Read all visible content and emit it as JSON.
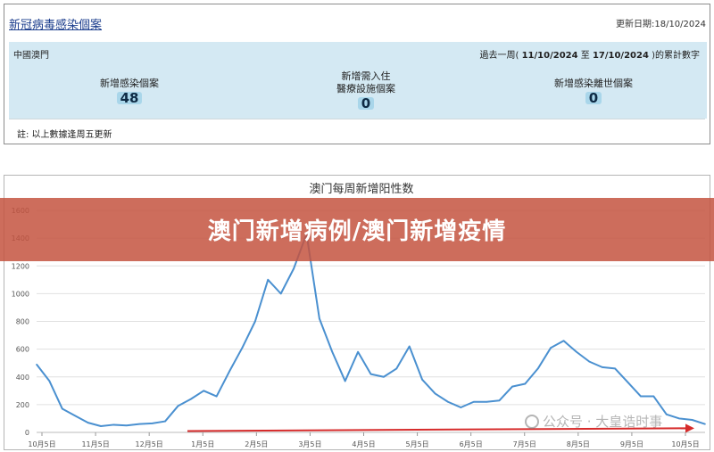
{
  "panel": {
    "title": "新冠病毒感染個案",
    "updated": "更新日期:18/10/2024",
    "region": "中國澳門",
    "period_prefix": "過去一周(",
    "period_dates": "11/10/2024",
    "period_mid": "至",
    "period_dates_end": "17/10/2024",
    "period_suffix": ")的累計數字",
    "stats": [
      {
        "label": "新增感染個案",
        "label2": "",
        "value": "48"
      },
      {
        "label": "新增需入住",
        "label2": "醫療設施個案",
        "value": "0"
      },
      {
        "label": "新增感染離世個案",
        "label2": "",
        "value": "0"
      }
    ],
    "note": "註: 以上數據逢周五更新"
  },
  "banner": {
    "text": "澳门新增病例/澳门新增疫情"
  },
  "watermark": {
    "text": "公众号 · 大皇诰时事"
  },
  "colors": {
    "line": "#4a90d0",
    "trend": "#d62b2b",
    "grid": "#e0e0e0",
    "banner": "#c4543f"
  },
  "chart_data": {
    "type": "line",
    "title": "澳门每周新增阳性数",
    "xlabel": "",
    "ylabel": "",
    "ylim": [
      0,
      1600
    ],
    "yticks": [
      "0",
      "200",
      "400",
      "600",
      "800",
      "1000",
      "1200",
      "1400",
      "1600"
    ],
    "xtick_labels": [
      "10月5日",
      "11月5日",
      "12月5日",
      "1月5日",
      "2月5日",
      "3月5日",
      "4月5日",
      "5月5日",
      "6月5日",
      "7月5日",
      "8月5日",
      "9月5日",
      "10月5日"
    ],
    "grid": true,
    "series": [
      {
        "values": [
          490,
          370,
          170,
          120,
          70,
          45,
          55,
          50,
          60,
          65,
          80,
          190,
          240,
          300,
          260,
          440,
          610,
          800,
          1100,
          1000,
          1180,
          1430,
          820,
          580,
          370,
          580,
          420,
          400,
          460,
          620,
          380,
          280,
          220,
          180,
          220,
          220,
          230,
          330,
          350,
          460,
          610,
          660,
          580,
          510,
          470,
          460,
          360,
          260,
          260,
          130,
          100,
          90,
          60
        ]
      }
    ],
    "trend_line": {
      "start": 10,
      "end": 30
    }
  }
}
